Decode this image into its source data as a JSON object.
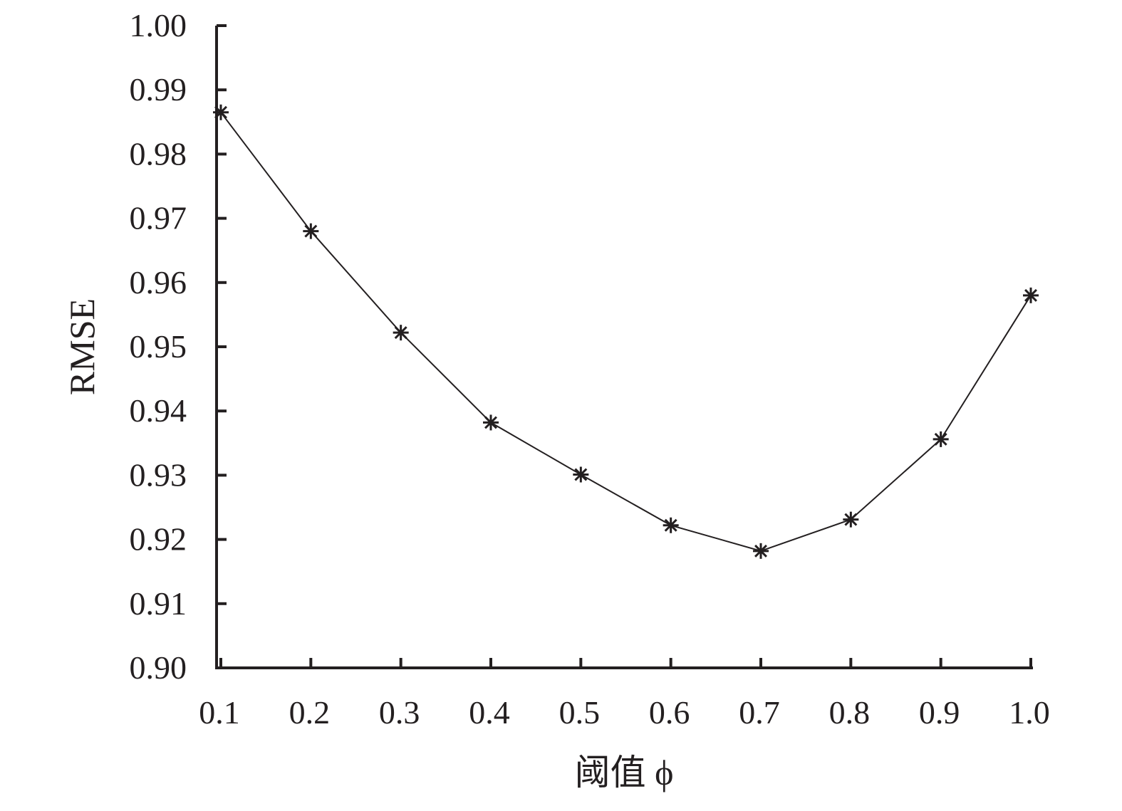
{
  "chart_data": {
    "type": "line",
    "title": "",
    "xlabel": "阈值 ϕ",
    "ylabel": "RMSE",
    "x": [
      0.1,
      0.2,
      0.3,
      0.4,
      0.5,
      0.6,
      0.7,
      0.8,
      0.9,
      1.0
    ],
    "series": [
      {
        "values": [
          0.9865,
          0.968,
          0.9522,
          0.9382,
          0.9301,
          0.9222,
          0.9182,
          0.9231,
          0.9356,
          0.958
        ],
        "marker": "asterisk",
        "color": "#231f20"
      }
    ],
    "xticks": [
      "0.1",
      "0.2",
      "0.3",
      "0.4",
      "0.5",
      "0.6",
      "0.7",
      "0.8",
      "0.9",
      "1.0"
    ],
    "yticks": [
      "0.90",
      "0.91",
      "0.92",
      "0.93",
      "0.94",
      "0.95",
      "0.96",
      "0.97",
      "0.98",
      "0.99",
      "1.00"
    ],
    "xlim": [
      0.1,
      1.0
    ],
    "ylim": [
      0.9,
      1.0
    ],
    "grid": false,
    "legend": "none"
  }
}
